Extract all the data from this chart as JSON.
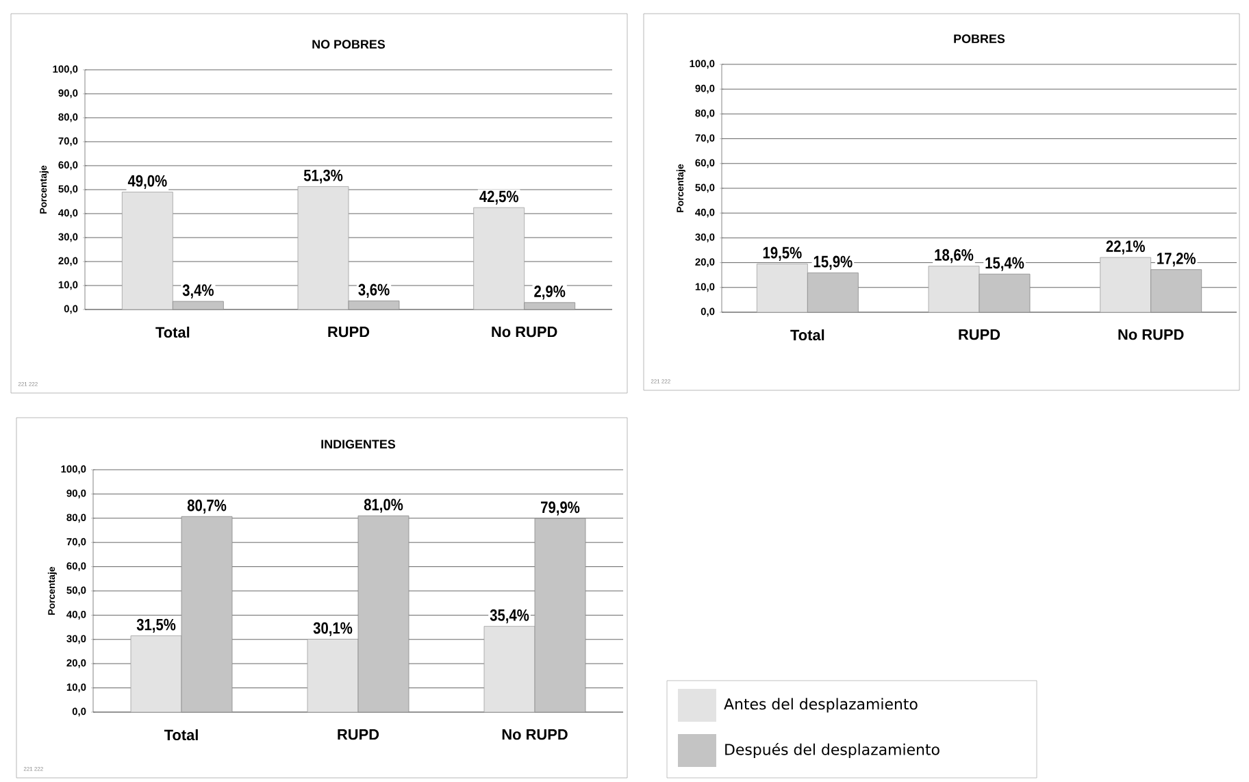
{
  "chart_data": [
    {
      "type": "bar",
      "title": "NO POBRES",
      "ylabel": "Porcentaje",
      "categories": [
        "Total",
        "RUPD",
        "No RUPD"
      ],
      "series": [
        {
          "color": "#e3e3e3",
          "values": [
            49.0,
            51.3,
            42.5
          ],
          "value_labels": [
            "49,0%",
            "51,3%",
            "42,5%"
          ]
        },
        {
          "color": "#c4c4c4",
          "values": [
            3.4,
            3.6,
            2.9
          ],
          "value_labels": [
            "3,4%",
            "3,6%",
            "2,9%"
          ]
        }
      ],
      "ylim": [
        0,
        100
      ],
      "yticks": [
        {
          "value": 0,
          "label": "0,0"
        },
        {
          "value": 10,
          "label": "10,0"
        },
        {
          "value": 20,
          "label": "20,0"
        },
        {
          "value": 30,
          "label": "30,0"
        },
        {
          "value": 40,
          "label": "40,0"
        },
        {
          "value": 50,
          "label": "50,0"
        },
        {
          "value": 60,
          "label": "60,0"
        },
        {
          "value": 70,
          "label": "70,0"
        },
        {
          "value": 80,
          "label": "80,0"
        },
        {
          "value": 90,
          "label": "90,0"
        },
        {
          "value": 100,
          "label": "100,0"
        }
      ],
      "grid": "y",
      "annotations": [
        "221 222"
      ]
    },
    {
      "type": "bar",
      "title": "POBRES",
      "ylabel": "Porcentaje",
      "categories": [
        "Total",
        "RUPD",
        "No RUPD"
      ],
      "series": [
        {
          "color": "#e3e3e3",
          "values": [
            19.5,
            18.6,
            22.1
          ],
          "value_labels": [
            "19,5%",
            "18,6%",
            "22,1%"
          ]
        },
        {
          "color": "#c4c4c4",
          "values": [
            15.9,
            15.4,
            17.2
          ],
          "value_labels": [
            "15,9%",
            "15,4%",
            "17,2%"
          ]
        }
      ],
      "ylim": [
        0,
        100
      ],
      "yticks": [
        {
          "value": 0,
          "label": "0,0"
        },
        {
          "value": 10,
          "label": "10,0"
        },
        {
          "value": 20,
          "label": "20,0"
        },
        {
          "value": 30,
          "label": "30,0"
        },
        {
          "value": 40,
          "label": "40,0"
        },
        {
          "value": 50,
          "label": "50,0"
        },
        {
          "value": 60,
          "label": "60,0"
        },
        {
          "value": 70,
          "label": "70,0"
        },
        {
          "value": 80,
          "label": "80,0"
        },
        {
          "value": 90,
          "label": "90,0"
        },
        {
          "value": 100,
          "label": "100,0"
        }
      ],
      "grid": "y",
      "annotations": [
        "221 222"
      ]
    },
    {
      "type": "bar",
      "title": "INDIGENTES",
      "ylabel": "Porcentaje",
      "categories": [
        "Total",
        "RUPD",
        "No RUPD"
      ],
      "series": [
        {
          "name": "Antes del desplazamiento",
          "color": "#e3e3e3",
          "values": [
            31.5,
            30.1,
            35.4
          ],
          "value_labels": [
            "31,5%",
            "30,1%",
            "35,4%"
          ]
        },
        {
          "name": "Después del desplazamiento",
          "color": "#c4c4c4",
          "values": [
            80.7,
            81.0,
            79.9
          ],
          "value_labels": [
            "80,7%",
            "81,0%",
            "79,9%"
          ]
        }
      ],
      "ylim": [
        0,
        100
      ],
      "yticks": [
        {
          "value": 0,
          "label": "0,0"
        },
        {
          "value": 10,
          "label": "10,0"
        },
        {
          "value": 20,
          "label": "20,0"
        },
        {
          "value": 30,
          "label": "30,0"
        },
        {
          "value": 40,
          "label": "40,0"
        },
        {
          "value": 50,
          "label": "50,0"
        },
        {
          "value": 60,
          "label": "60,0"
        },
        {
          "value": 70,
          "label": "70,0"
        },
        {
          "value": 80,
          "label": "80,0"
        },
        {
          "value": 90,
          "label": "90,0"
        },
        {
          "value": 100,
          "label": "100,0"
        }
      ],
      "grid": "y",
      "legend": "right",
      "annotations": [
        "221 222"
      ]
    }
  ]
}
